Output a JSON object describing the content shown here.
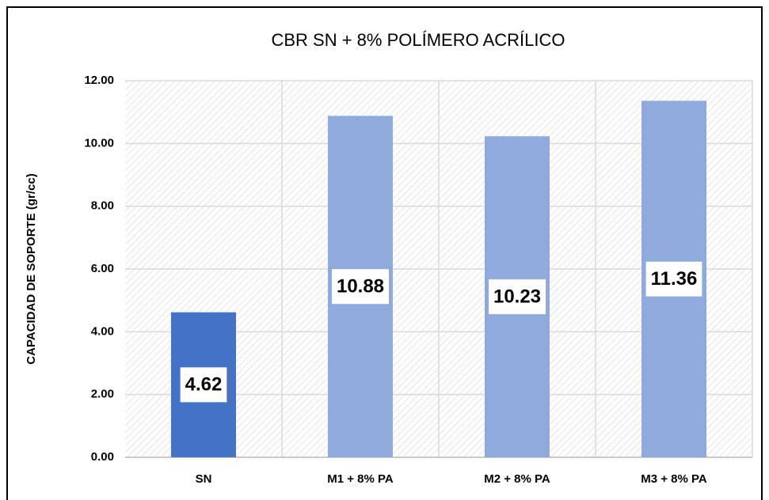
{
  "chart_data": {
    "type": "bar",
    "title": "CBR SN + 8% POLÍMERO ACRÍLICO",
    "y_label": "CAPACIDAD DE SOPORTE (gr/cc)",
    "categories": [
      "SN",
      "M1 + 8% PA",
      "M2 + 8% PA",
      "M3 + 8% PA"
    ],
    "values": [
      4.62,
      10.88,
      10.23,
      11.36
    ],
    "colors": [
      "#4472c4",
      "#8faadc",
      "#8faadc",
      "#8faadc"
    ],
    "ylim": [
      0,
      12
    ],
    "yticks": [
      {
        "value": 0,
        "label": "0.00"
      },
      {
        "value": 2,
        "label": "2.00"
      },
      {
        "value": 4,
        "label": "4.00"
      },
      {
        "value": 6,
        "label": "6.00"
      },
      {
        "value": 8,
        "label": "8.00"
      },
      {
        "value": 10,
        "label": "10.00"
      },
      {
        "value": 12,
        "label": "12.00"
      }
    ],
    "grid": true
  }
}
